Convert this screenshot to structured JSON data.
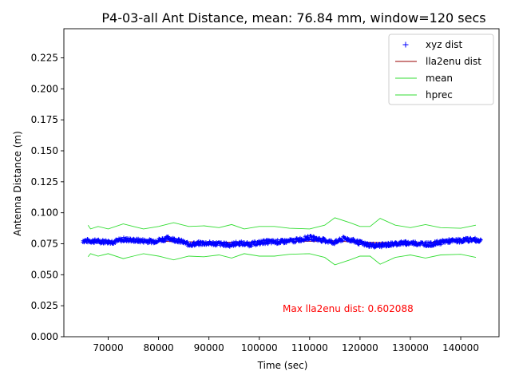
{
  "chart_data": {
    "type": "line",
    "title": "P4-03-all Ant Distance, mean: 76.84 mm, window=120 secs",
    "xlabel": "Time (sec)",
    "ylabel": "Antenna Distance (m)",
    "xlim": [
      61200,
      147600
    ],
    "ylim": [
      0.0,
      0.2485
    ],
    "xticks": [
      70000,
      80000,
      90000,
      100000,
      110000,
      120000,
      130000,
      140000
    ],
    "xtick_labels": [
      "70000",
      "80000",
      "90000",
      "100000",
      "110000",
      "120000",
      "130000",
      "140000"
    ],
    "yticks": [
      0.0,
      0.025,
      0.05,
      0.075,
      0.1,
      0.125,
      0.15,
      0.175,
      0.2,
      0.225
    ],
    "ytick_labels": [
      "0.000",
      "0.025",
      "0.050",
      "0.075",
      "0.100",
      "0.125",
      "0.150",
      "0.175",
      "0.200",
      "0.225"
    ],
    "grid": false,
    "legend_position": "top-right",
    "series": [
      {
        "name": "xyz dist",
        "style": "marker",
        "marker": "+",
        "color": "#0000ff",
        "x_range": [
          65000,
          144000
        ],
        "x": [
          65000,
          68000,
          71000,
          73000,
          76000,
          79000,
          82000,
          84000,
          86000,
          89000,
          92000,
          94000,
          96000,
          98000,
          101000,
          104000,
          107000,
          110000,
          112000,
          115000,
          117000,
          119000,
          121000,
          123000,
          125000,
          128000,
          131000,
          134000,
          137000,
          140000,
          142000,
          144000
        ],
        "y": [
          0.0775,
          0.077,
          0.0765,
          0.0785,
          0.0775,
          0.077,
          0.0795,
          0.0775,
          0.0745,
          0.0755,
          0.075,
          0.074,
          0.0755,
          0.0745,
          0.0765,
          0.0765,
          0.0775,
          0.08,
          0.0785,
          0.076,
          0.0795,
          0.077,
          0.0745,
          0.0735,
          0.074,
          0.0755,
          0.0755,
          0.0745,
          0.077,
          0.0775,
          0.0785,
          0.0775
        ],
        "noise_amplitude": 0.0035
      },
      {
        "name": "lla2enu dist",
        "style": "line",
        "color": "#990000",
        "x": [
          65000,
          75000,
          85000,
          95000,
          105000,
          115000,
          120000,
          130000,
          144000
        ],
        "y": [
          0.0772,
          0.0773,
          0.0767,
          0.0762,
          0.0768,
          0.0772,
          0.0762,
          0.0758,
          0.0775
        ]
      },
      {
        "name": "mean",
        "style": "line",
        "color": "#33dd33",
        "x": [
          66000,
          66500,
          68000,
          70000,
          73000,
          75000,
          77000,
          80000,
          83000,
          86000,
          89000,
          92000,
          94500,
          97000,
          100000,
          103000,
          106000,
          110000,
          113000,
          115000,
          118000,
          120000,
          122000,
          124000,
          127000,
          130000,
          133000,
          136000,
          140000,
          143000
        ],
        "y": [
          0.09,
          0.087,
          0.089,
          0.087,
          0.091,
          0.089,
          0.087,
          0.089,
          0.092,
          0.089,
          0.0895,
          0.088,
          0.0905,
          0.087,
          0.089,
          0.089,
          0.0875,
          0.087,
          0.09,
          0.096,
          0.092,
          0.089,
          0.089,
          0.0955,
          0.09,
          0.088,
          0.0905,
          0.088,
          0.0875,
          0.09
        ]
      },
      {
        "name": "hprec",
        "style": "line",
        "color": "#33dd33",
        "x": [
          66000,
          66500,
          68000,
          70000,
          73000,
          75000,
          77000,
          80000,
          83000,
          86000,
          89000,
          92000,
          94500,
          97000,
          100000,
          103000,
          106000,
          110000,
          113000,
          115000,
          118000,
          120000,
          122000,
          124000,
          127000,
          130000,
          133000,
          136000,
          140000,
          143000
        ],
        "y": [
          0.0645,
          0.067,
          0.065,
          0.067,
          0.063,
          0.065,
          0.067,
          0.065,
          0.062,
          0.065,
          0.0645,
          0.066,
          0.0635,
          0.067,
          0.065,
          0.065,
          0.0665,
          0.067,
          0.064,
          0.058,
          0.062,
          0.065,
          0.065,
          0.0585,
          0.064,
          0.066,
          0.0635,
          0.066,
          0.0665,
          0.064
        ]
      }
    ],
    "annotations": [
      {
        "text": "Max lla2enu dist: 0.602088",
        "x": 104000,
        "y": 0.0205,
        "color": "#ff0000"
      }
    ]
  }
}
